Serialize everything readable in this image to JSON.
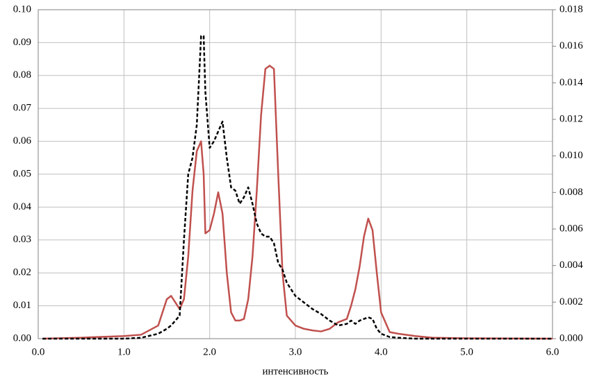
{
  "chart_data": {
    "type": "line",
    "xlabel": "интенсивность",
    "x": [
      0.05,
      0.5,
      1.0,
      1.2,
      1.4,
      1.5,
      1.55,
      1.6,
      1.65,
      1.7,
      1.75,
      1.8,
      1.85,
      1.9,
      1.93,
      1.95,
      2.0,
      2.05,
      2.1,
      2.15,
      2.2,
      2.25,
      2.3,
      2.35,
      2.4,
      2.45,
      2.5,
      2.55,
      2.6,
      2.65,
      2.7,
      2.75,
      2.8,
      2.85,
      2.9,
      3.0,
      3.1,
      3.2,
      3.3,
      3.4,
      3.5,
      3.6,
      3.65,
      3.7,
      3.75,
      3.8,
      3.85,
      3.9,
      3.95,
      4.0,
      4.1,
      4.2,
      4.4,
      4.6,
      5.0,
      6.0
    ],
    "series": [
      {
        "color": "#c0504d",
        "line_style": "solid",
        "axis": "y",
        "values": [
          0,
          0.0003,
          0.0008,
          0.0012,
          0.004,
          0.012,
          0.013,
          0.011,
          0.009,
          0.012,
          0.025,
          0.045,
          0.057,
          0.06,
          0.05,
          0.032,
          0.033,
          0.038,
          0.0445,
          0.038,
          0.02,
          0.008,
          0.0055,
          0.0055,
          0.006,
          0.012,
          0.025,
          0.045,
          0.068,
          0.082,
          0.083,
          0.082,
          0.05,
          0.02,
          0.007,
          0.004,
          0.003,
          0.0025,
          0.0022,
          0.003,
          0.005,
          0.006,
          0.01,
          0.015,
          0.022,
          0.031,
          0.0365,
          0.033,
          0.02,
          0.008,
          0.002,
          0.0015,
          0.0008,
          0.0003,
          0.0001,
          0
        ]
      },
      {
        "color": "#000000",
        "line_style": "dashed",
        "axis": "y2",
        "values": [
          0,
          0,
          0,
          5e-05,
          0.00027,
          0.00054,
          0.00072,
          0.00099,
          0.00126,
          0.0054,
          0.009,
          0.0099,
          0.0117,
          0.01656,
          0.01656,
          0.0135,
          0.01044,
          0.0108,
          0.01134,
          0.01188,
          0.0099,
          0.00828,
          0.0081,
          0.00738,
          0.00774,
          0.00828,
          0.00738,
          0.0063,
          0.00576,
          0.00558,
          0.00558,
          0.00522,
          0.00414,
          0.00378,
          0.00306,
          0.00234,
          0.00198,
          0.00162,
          0.00135,
          0.00099,
          0.00072,
          0.00081,
          0.00099,
          0.00081,
          0.00099,
          0.00108,
          0.00117,
          0.00108,
          0.00054,
          0.00027,
          9e-05,
          5e-05,
          0,
          0,
          0,
          0
        ]
      }
    ],
    "xlim": [
      0,
      6
    ],
    "xticks": [
      {
        "value": 0,
        "label": "0.0"
      },
      {
        "value": 1,
        "label": "1.0"
      },
      {
        "value": 2,
        "label": "2.0"
      },
      {
        "value": 3,
        "label": "3.0"
      },
      {
        "value": 4,
        "label": "4.0"
      },
      {
        "value": 5,
        "label": "5.0"
      },
      {
        "value": 6,
        "label": "6.0"
      }
    ],
    "ylim": [
      0,
      0.1
    ],
    "yticks": [
      {
        "value": 0,
        "label": "0.00"
      },
      {
        "value": 0.01,
        "label": "0.01"
      },
      {
        "value": 0.02,
        "label": "0.02"
      },
      {
        "value": 0.03,
        "label": "0.03"
      },
      {
        "value": 0.04,
        "label": "0.04"
      },
      {
        "value": 0.05,
        "label": "0.05"
      },
      {
        "value": 0.06,
        "label": "0.06"
      },
      {
        "value": 0.07,
        "label": "0.07"
      },
      {
        "value": 0.08,
        "label": "0.08"
      },
      {
        "value": 0.09,
        "label": "0.09"
      },
      {
        "value": 0.1,
        "label": "0.10"
      }
    ],
    "y2lim": [
      0,
      0.018
    ],
    "y2ticks": [
      {
        "value": 0,
        "label": "0.000"
      },
      {
        "value": 0.002,
        "label": "0.002"
      },
      {
        "value": 0.004,
        "label": "0.004"
      },
      {
        "value": 0.006,
        "label": "0.006"
      },
      {
        "value": 0.008,
        "label": "0.008"
      },
      {
        "value": 0.01,
        "label": "0.010"
      },
      {
        "value": 0.012,
        "label": "0.012"
      },
      {
        "value": 0.014,
        "label": "0.014"
      },
      {
        "value": 0.016,
        "label": "0.016"
      },
      {
        "value": 0.018,
        "label": "0.018"
      }
    ],
    "grid": true
  }
}
